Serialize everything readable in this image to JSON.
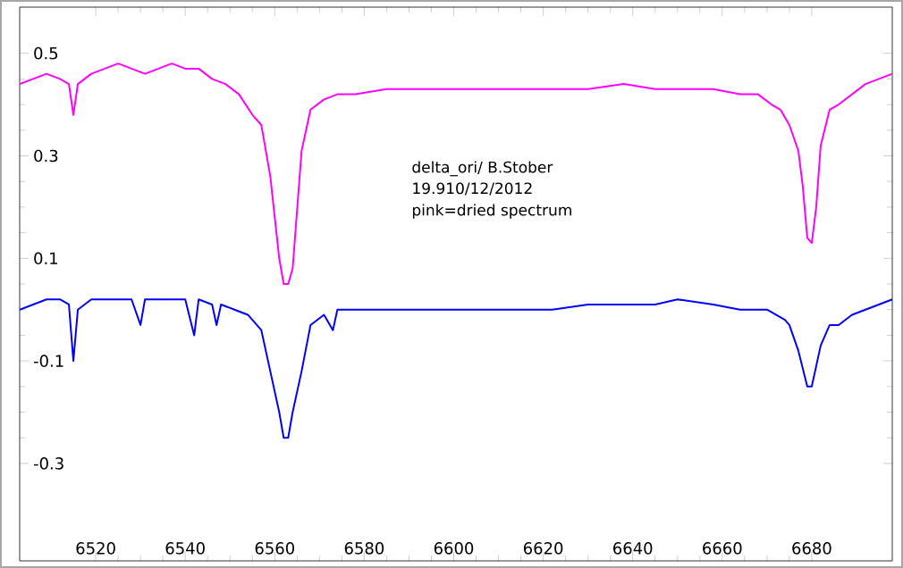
{
  "chart_data": {
    "type": "line",
    "xlim": [
      6503,
      6698
    ],
    "ylim": [
      -0.49,
      0.59
    ],
    "xticks": [
      6520,
      6540,
      6560,
      6580,
      6600,
      6620,
      6640,
      6660,
      6680
    ],
    "yticks": [
      0.5,
      0.3,
      0.1,
      -0.1,
      -0.3
    ],
    "marker": "none",
    "line_style": "solid",
    "annotations": [
      "delta_ori/ B.Stober",
      "19.910/12/2012",
      "pink=dried spectrum"
    ],
    "series": [
      {
        "color": "#ff00ff",
        "x": [
          6503,
          6506,
          6509,
          6512,
          6514,
          6515,
          6516,
          6519,
          6522,
          6525,
          6528,
          6531,
          6534,
          6537,
          6540,
          6543,
          6546,
          6549,
          6552,
          6555,
          6557,
          6559,
          6561,
          6562,
          6563,
          6564,
          6566,
          6568,
          6571,
          6574,
          6578,
          6585,
          6592,
          6600,
          6608,
          6615,
          6622,
          6630,
          6638,
          6645,
          6652,
          6658,
          6664,
          6668,
          6671,
          6673,
          6675,
          6677,
          6678,
          6679,
          6680,
          6681,
          6682,
          6684,
          6686,
          6689,
          6692,
          6695,
          6698
        ],
        "values": [
          0.44,
          0.45,
          0.46,
          0.45,
          0.44,
          0.38,
          0.44,
          0.46,
          0.47,
          0.48,
          0.47,
          0.46,
          0.47,
          0.48,
          0.47,
          0.47,
          0.45,
          0.44,
          0.42,
          0.38,
          0.36,
          0.26,
          0.1,
          0.05,
          0.05,
          0.08,
          0.31,
          0.39,
          0.41,
          0.42,
          0.42,
          0.43,
          0.43,
          0.43,
          0.43,
          0.43,
          0.43,
          0.43,
          0.44,
          0.43,
          0.43,
          0.43,
          0.42,
          0.42,
          0.4,
          0.39,
          0.36,
          0.31,
          0.24,
          0.14,
          0.13,
          0.2,
          0.32,
          0.39,
          0.4,
          0.42,
          0.44,
          0.45,
          0.46
        ]
      },
      {
        "color": "#0000ff",
        "x": [
          6503,
          6506,
          6509,
          6512,
          6514,
          6515,
          6516,
          6519,
          6522,
          6525,
          6528,
          6530,
          6531,
          6534,
          6537,
          6540,
          6542,
          6543,
          6546,
          6547,
          6548,
          6551,
          6554,
          6557,
          6559,
          6561,
          6562,
          6563,
          6564,
          6566,
          6568,
          6571,
          6573,
          6574,
          6576,
          6585,
          6592,
          6600,
          6608,
          6615,
          6622,
          6630,
          6638,
          6645,
          6650,
          6658,
          6664,
          6670,
          6674,
          6675,
          6677,
          6679,
          6680,
          6681,
          6682,
          6684,
          6686,
          6689,
          6692,
          6695,
          6698
        ],
        "values": [
          0.0,
          0.01,
          0.02,
          0.02,
          0.01,
          -0.1,
          0.0,
          0.02,
          0.02,
          0.02,
          0.02,
          -0.03,
          0.02,
          0.02,
          0.02,
          0.02,
          -0.05,
          0.02,
          0.01,
          -0.03,
          0.01,
          0.0,
          -0.01,
          -0.04,
          -0.12,
          -0.2,
          -0.25,
          -0.25,
          -0.2,
          -0.12,
          -0.03,
          -0.01,
          -0.04,
          0.0,
          0.0,
          0.0,
          0.0,
          0.0,
          0.0,
          0.0,
          0.0,
          0.01,
          0.01,
          0.01,
          0.02,
          0.01,
          0.0,
          0.0,
          -0.02,
          -0.03,
          -0.08,
          -0.15,
          -0.15,
          -0.11,
          -0.07,
          -0.03,
          -0.03,
          -0.01,
          0.0,
          0.01,
          0.02
        ]
      }
    ]
  }
}
